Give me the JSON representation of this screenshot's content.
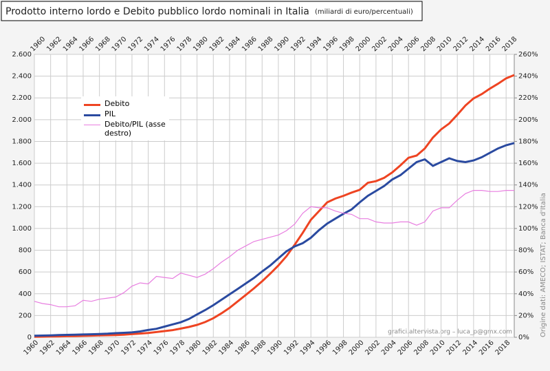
{
  "chart_data": {
    "type": "line",
    "title": "Prodotto interno lordo e Debito pubblico lordo nominali in Italia",
    "subtitle": "(miliardi di euro/percentuali)",
    "source": "Origine dati: AMECO; ISTAT; Banca d'Italia",
    "credit": "grafici.altervista.org – luca_p@gmx.com",
    "x": [
      1960,
      1961,
      1962,
      1963,
      1964,
      1965,
      1966,
      1967,
      1968,
      1969,
      1970,
      1971,
      1972,
      1973,
      1974,
      1975,
      1976,
      1977,
      1978,
      1979,
      1980,
      1981,
      1982,
      1983,
      1984,
      1985,
      1986,
      1987,
      1988,
      1989,
      1990,
      1991,
      1992,
      1993,
      1994,
      1995,
      1996,
      1997,
      1998,
      1999,
      2000,
      2001,
      2002,
      2003,
      2004,
      2005,
      2006,
      2007,
      2008,
      2009,
      2010,
      2011,
      2012,
      2013,
      2014,
      2015,
      2016,
      2017,
      2018,
      2019
    ],
    "series": [
      {
        "name": "Debito",
        "color": "#ee4422",
        "axis": "y",
        "values": [
          5,
          6,
          7,
          8,
          10,
          11,
          13,
          15,
          17,
          19,
          21,
          24,
          29,
          34,
          40,
          48,
          57,
          66,
          80,
          95,
          114,
          140,
          175,
          220,
          270,
          330,
          390,
          450,
          515,
          585,
          660,
          745,
          850,
          960,
          1080,
          1160,
          1240,
          1275,
          1300,
          1330,
          1355,
          1420,
          1435,
          1465,
          1515,
          1580,
          1650,
          1670,
          1735,
          1835,
          1910,
          1965,
          2045,
          2130,
          2195,
          2235,
          2285,
          2330,
          2380,
          2410
        ]
      },
      {
        "name": "PIL",
        "color": "#2a4aa0",
        "axis": "y",
        "values": [
          14,
          16,
          18,
          20,
          22,
          24,
          26,
          28,
          30,
          33,
          38,
          41,
          45,
          54,
          67,
          78,
          98,
          118,
          138,
          168,
          210,
          250,
          295,
          345,
          395,
          445,
          495,
          545,
          605,
          660,
          725,
          790,
          835,
          865,
          915,
          985,
          1045,
          1090,
          1135,
          1175,
          1240,
          1300,
          1345,
          1390,
          1450,
          1490,
          1550,
          1610,
          1635,
          1575,
          1610,
          1645,
          1620,
          1610,
          1625,
          1655,
          1695,
          1735,
          1765,
          1785
        ]
      },
      {
        "name": "Debito/PIL (asse destro)",
        "color": "#e87ee0",
        "axis": "y2",
        "values": [
          33,
          31,
          30,
          28,
          28,
          29,
          34,
          33,
          35,
          36,
          37,
          41,
          47,
          50,
          49,
          56,
          55,
          54,
          59,
          57,
          55,
          58,
          63,
          69,
          74,
          80,
          84,
          88,
          90,
          92,
          94,
          98,
          104,
          114,
          120,
          119,
          119,
          116,
          114,
          113,
          109,
          109,
          106,
          105,
          105,
          106,
          106,
          103,
          106,
          116,
          119,
          119,
          126,
          132,
          135,
          135,
          134,
          134,
          135,
          135
        ]
      }
    ],
    "xlim": [
      1960,
      2019
    ],
    "xticks": [
      1960,
      1962,
      1964,
      1966,
      1968,
      1970,
      1972,
      1974,
      1976,
      1978,
      1980,
      1982,
      1984,
      1986,
      1988,
      1990,
      1992,
      1994,
      1996,
      1998,
      2000,
      2002,
      2004,
      2006,
      2008,
      2010,
      2012,
      2014,
      2016,
      2018
    ],
    "ylim": [
      0,
      2600
    ],
    "yticks": [
      0,
      200,
      400,
      600,
      800,
      {
        "value": 1000,
        "label": "1.000"
      },
      {
        "value": 1200,
        "label": "1.200"
      },
      {
        "value": 1400,
        "label": "1.400"
      },
      {
        "value": 1600,
        "label": "1.600"
      },
      {
        "value": 1800,
        "label": "1.800"
      },
      {
        "value": 2000,
        "label": "2.000"
      },
      {
        "value": 2200,
        "label": "2.200"
      },
      {
        "value": 2400,
        "label": "2.400"
      },
      {
        "value": 2600,
        "label": "2.600"
      }
    ],
    "y2lim": [
      0,
      260
    ],
    "y2ticks": [
      {
        "value": 0,
        "label": "0%"
      },
      {
        "value": 20,
        "label": "20%"
      },
      {
        "value": 40,
        "label": "40%"
      },
      {
        "value": 60,
        "label": "60%"
      },
      {
        "value": 80,
        "label": "80%"
      },
      {
        "value": 100,
        "label": "100%"
      },
      {
        "value": 120,
        "label": "120%"
      },
      {
        "value": 140,
        "label": "140%"
      },
      {
        "value": 160,
        "label": "160%"
      },
      {
        "value": 180,
        "label": "180%"
      },
      {
        "value": 200,
        "label": "200%"
      },
      {
        "value": 220,
        "label": "220%"
      },
      {
        "value": 240,
        "label": "240%"
      },
      {
        "value": 260,
        "label": "260%"
      }
    ],
    "grid": true,
    "legend": "upper left"
  }
}
